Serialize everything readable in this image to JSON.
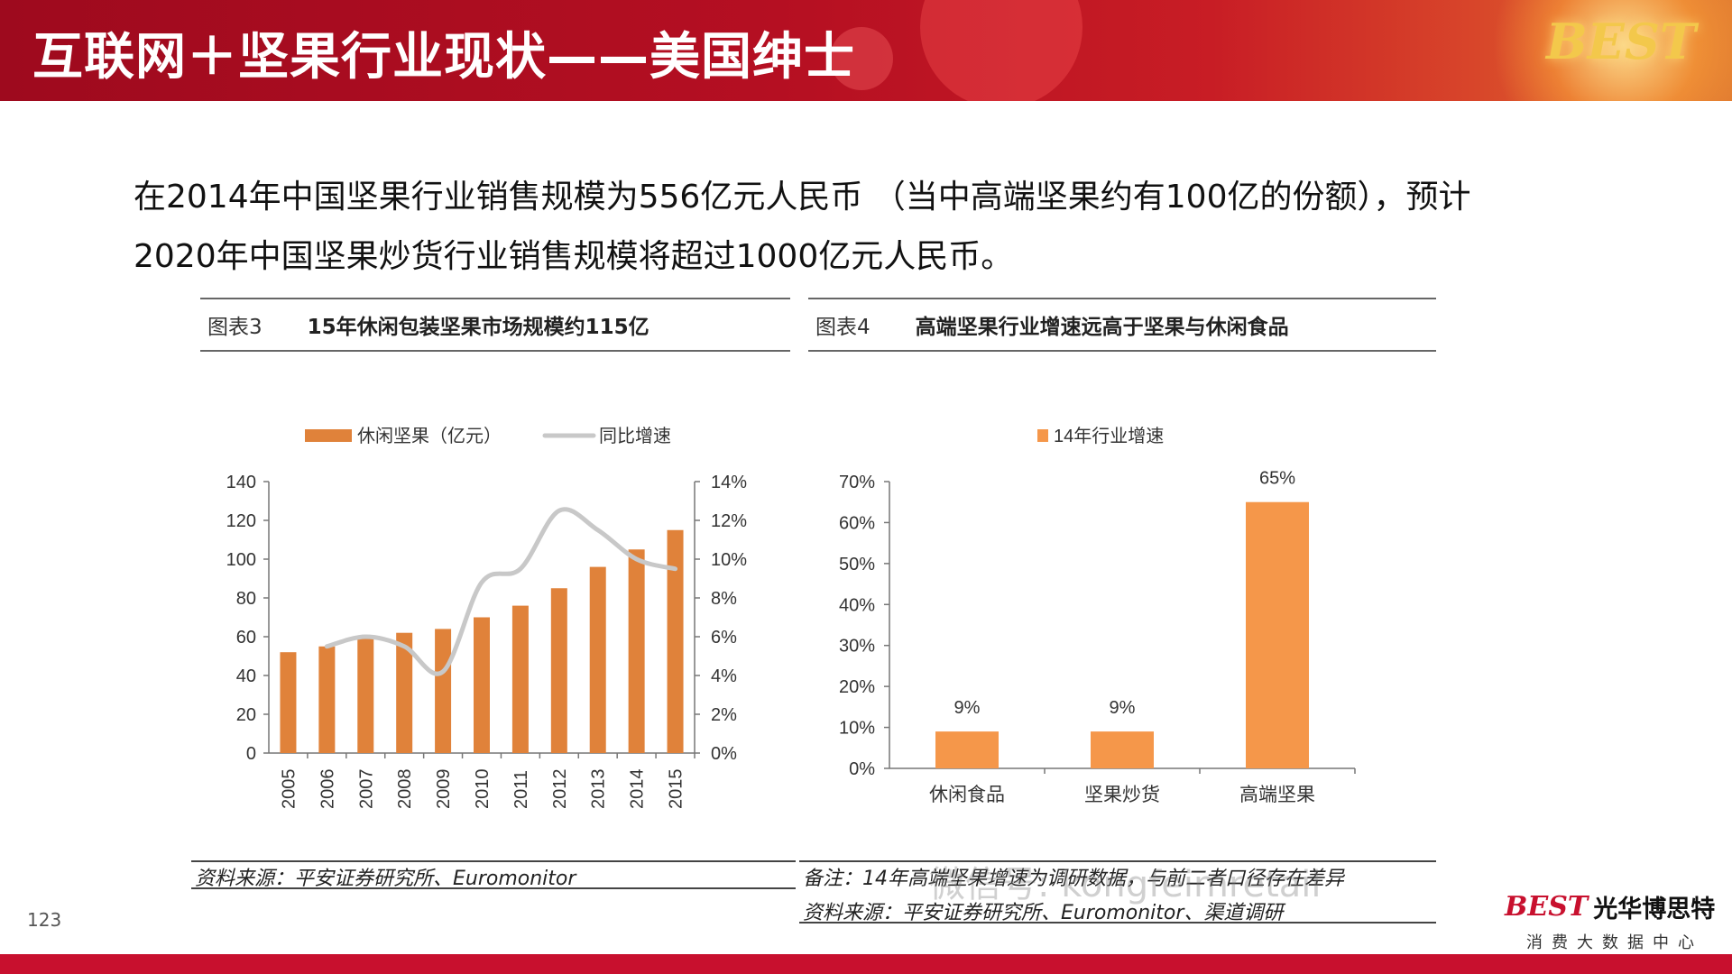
{
  "header": {
    "title": "互联网＋坚果行业现状——美国绅士",
    "logo": "BEST"
  },
  "intro": {
    "text": "在2014年中国坚果行业销售规模为556亿元人民币 （当中高端坚果约有100亿的份额），预计2020年中国坚果炒货行业销售规模将超过1000亿元人民币。"
  },
  "chart3": {
    "caption_num": "图表3",
    "caption_title": "15年休闲包装坚果市场规模约115亿",
    "source": "资料来源：平安证券研究所、Euromonitor"
  },
  "chart4": {
    "caption_num": "图表4",
    "caption_title": "高端坚果行业增速远高于坚果与休闲食品",
    "note": "备注：14年高端坚果增速为调研数据，与前二者口径存在差异",
    "source": "资料来源：平安证券研究所、Euromonitor、渠道调研"
  },
  "watermark": "微信号: kongfeimretail",
  "page_number": "123",
  "brand": {
    "logo": "BEST",
    "name": "光华博思特",
    "subtitle": "消费大数据中心"
  },
  "colors": {
    "header_red": "#b50f22",
    "bar_orange": "#e0823a",
    "bar_orange_light": "#f5974a",
    "line_gray": "#c8c8c8",
    "bottom_bar": "#c8102e"
  },
  "chart_data": [
    {
      "type": "bar",
      "categories": [
        "2005",
        "2006",
        "2007",
        "2008",
        "2009",
        "2010",
        "2011",
        "2012",
        "2013",
        "2014",
        "2015"
      ],
      "series": [
        {
          "name": "休闲坚果（亿元）",
          "type": "bar",
          "axis": "left",
          "values": [
            52,
            55,
            60,
            62,
            64,
            70,
            76,
            85,
            96,
            105,
            115
          ]
        },
        {
          "name": "同比增速",
          "type": "line",
          "axis": "right",
          "values": [
            null,
            5.5,
            6.0,
            5.5,
            4.2,
            8.8,
            9.5,
            12.5,
            11.5,
            10.0,
            9.5
          ]
        }
      ],
      "ylim_left": [
        0,
        140
      ],
      "yticks_left": [
        "0",
        "20",
        "40",
        "60",
        "80",
        "100",
        "120",
        "140"
      ],
      "ylim_right": [
        0,
        14
      ],
      "yticks_right": [
        "0%",
        "2%",
        "4%",
        "6%",
        "8%",
        "10%",
        "12%",
        "14%"
      ],
      "legend_position": "top"
    },
    {
      "type": "bar",
      "categories": [
        "休闲食品",
        "坚果炒货",
        "高端坚果"
      ],
      "series": [
        {
          "name": "14年行业增速",
          "values": [
            9,
            9,
            65
          ]
        }
      ],
      "data_labels": [
        "9%",
        "9%",
        "65%"
      ],
      "ylim": [
        0,
        70
      ],
      "yticks": [
        "0%",
        "10%",
        "20%",
        "30%",
        "40%",
        "50%",
        "60%",
        "70%"
      ],
      "legend_position": "top"
    }
  ]
}
